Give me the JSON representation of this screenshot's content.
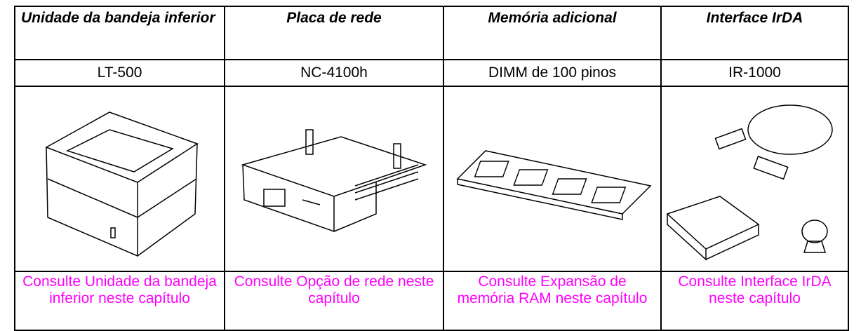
{
  "table": {
    "header": [
      "Unidade da bandeja inferior",
      "Placa de rede",
      "Memória adicional",
      "Interface IrDA"
    ],
    "models": [
      "LT-500",
      "NC-4100h",
      "DIMM de 100 pinos",
      "IR-1000"
    ],
    "links": [
      "Consulte Unidade da bandeja inferior neste capítulo",
      "Consulte Opção de rede neste capítulo",
      "Consulte Expansão de memória RAM neste capítulo",
      "Consulte Interface IrDA neste capítulo"
    ]
  }
}
